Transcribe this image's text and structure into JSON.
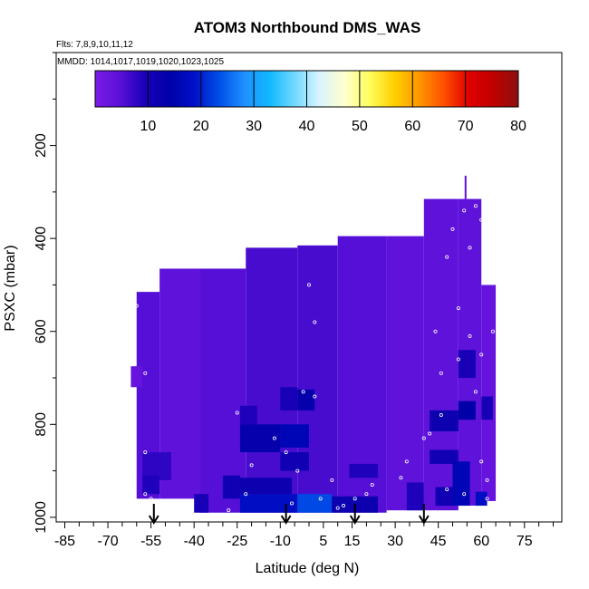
{
  "chart_data": {
    "type": "heatmap",
    "title": "ATOM3 Northbound DMS_WAS",
    "flights_label": "Flts: 7,8,9,10,11,12",
    "dates_label": "MMDD: 1014,1017,1019,1020,1023,1025",
    "xlabel": "Latitude (deg N)",
    "ylabel": "PSXC (mbar)",
    "xlim": [
      -88,
      88
    ],
    "ylim": [
      1010,
      0
    ],
    "x_ticks": [
      -85,
      -70,
      -55,
      -40,
      -25,
      -10,
      5,
      15,
      30,
      45,
      60,
      75
    ],
    "x_tick_labels": [
      "-85",
      "-70",
      "-55",
      "-40",
      "-25",
      "-10",
      "5",
      "15",
      "30",
      "45",
      "60",
      "75"
    ],
    "y_ticks": [
      200,
      400,
      600,
      800,
      1000
    ],
    "y_tick_labels": [
      "200",
      "400",
      "600",
      "800",
      "1000"
    ],
    "colorbar": {
      "min": 0,
      "max": 80,
      "ticks": [
        10,
        20,
        30,
        40,
        50,
        60,
        70,
        80
      ],
      "tick_labels": [
        "10",
        "20",
        "30",
        "40",
        "50",
        "60",
        "70",
        "80"
      ],
      "stops": [
        "#7a1be6",
        "#5a10d8",
        "#1a00b8",
        "#0000a8",
        "#0010c8",
        "#0050e8",
        "#2090ff",
        "#10b8ff",
        "#70d8ff",
        "#d8f4ff",
        "#ffffd0",
        "#ffff60",
        "#ffd000",
        "#ff9800",
        "#ff5000",
        "#e00000",
        "#c00000",
        "#8c1010"
      ]
    },
    "cells": [
      {
        "lat": [
          -60,
          -52
        ],
        "p": [
          515,
          960
        ],
        "value": 5
      },
      {
        "lat": [
          -52,
          -38
        ],
        "p": [
          465,
          960
        ],
        "value": 4
      },
      {
        "lat": [
          -38,
          -22
        ],
        "p": [
          465,
          990
        ],
        "value": 5
      },
      {
        "lat": [
          -22,
          -4
        ],
        "p": [
          420,
          990
        ],
        "value": 6
      },
      {
        "lat": [
          -4,
          10
        ],
        "p": [
          415,
          990
        ],
        "value": 6
      },
      {
        "lat": [
          10,
          27
        ],
        "p": [
          395,
          990
        ],
        "value": 5
      },
      {
        "lat": [
          27,
          40
        ],
        "p": [
          395,
          985
        ],
        "value": 4
      },
      {
        "lat": [
          40,
          52
        ],
        "p": [
          315,
          985
        ],
        "value": 4
      },
      {
        "lat": [
          52,
          60
        ],
        "p": [
          315,
          975
        ],
        "value": 4
      },
      {
        "lat": [
          60,
          65
        ],
        "p": [
          500,
          965
        ],
        "value": 3
      },
      {
        "lat": [
          -62,
          -58
        ],
        "p": [
          675,
          720
        ],
        "value": 3
      },
      {
        "lat": [
          -58,
          -48
        ],
        "p": [
          860,
          920
        ],
        "value": 8
      },
      {
        "lat": [
          -58,
          -52
        ],
        "p": [
          910,
          950
        ],
        "value": 9
      },
      {
        "lat": [
          -40,
          -35
        ],
        "p": [
          950,
          990
        ],
        "value": 10
      },
      {
        "lat": [
          -30,
          -24
        ],
        "p": [
          910,
          960
        ],
        "value": 11
      },
      {
        "lat": [
          -24,
          -18
        ],
        "p": [
          760,
          800
        ],
        "value": 9
      },
      {
        "lat": [
          -24,
          -10
        ],
        "p": [
          800,
          860
        ],
        "value": 13
      },
      {
        "lat": [
          -10,
          0
        ],
        "p": [
          800,
          850
        ],
        "value": 16
      },
      {
        "lat": [
          -10,
          0
        ],
        "p": [
          860,
          900
        ],
        "value": 11
      },
      {
        "lat": [
          -10,
          -4
        ],
        "p": [
          720,
          770
        ],
        "value": 10
      },
      {
        "lat": [
          -4,
          2
        ],
        "p": [
          725,
          770
        ],
        "value": 13
      },
      {
        "lat": [
          -24,
          -6
        ],
        "p": [
          915,
          950
        ],
        "value": 12
      },
      {
        "lat": [
          -24,
          -4
        ],
        "p": [
          950,
          990
        ],
        "value": 18
      },
      {
        "lat": [
          -4,
          8
        ],
        "p": [
          950,
          990
        ],
        "value": 23
      },
      {
        "lat": [
          8,
          24
        ],
        "p": [
          955,
          990
        ],
        "value": 12
      },
      {
        "lat": [
          14,
          24
        ],
        "p": [
          885,
          915
        ],
        "value": 9
      },
      {
        "lat": [
          34,
          40
        ],
        "p": [
          925,
          985
        ],
        "value": 9
      },
      {
        "lat": [
          42,
          52
        ],
        "p": [
          770,
          815
        ],
        "value": 12
      },
      {
        "lat": [
          42,
          52
        ],
        "p": [
          855,
          885
        ],
        "value": 11
      },
      {
        "lat": [
          52,
          58
        ],
        "p": [
          640,
          700
        ],
        "value": 10
      },
      {
        "lat": [
          52,
          58
        ],
        "p": [
          750,
          790
        ],
        "value": 14
      },
      {
        "lat": [
          50,
          56
        ],
        "p": [
          880,
          975
        ],
        "value": 16
      },
      {
        "lat": [
          58,
          62
        ],
        "p": [
          945,
          975
        ],
        "value": 18
      },
      {
        "lat": [
          44,
          50
        ],
        "p": [
          935,
          975
        ],
        "value": 11
      },
      {
        "lat": [
          60,
          64
        ],
        "p": [
          740,
          790
        ],
        "value": 10
      }
    ],
    "flight_track_points": [
      {
        "lat": -54,
        "p": 502
      },
      {
        "lat": -60,
        "p": 545
      },
      {
        "lat": -57,
        "p": 690
      },
      {
        "lat": -57,
        "p": 950
      },
      {
        "lat": -57,
        "p": 860
      },
      {
        "lat": -55,
        "p": 960
      },
      {
        "lat": -40,
        "p": 1000
      },
      {
        "lat": -28,
        "p": 985
      },
      {
        "lat": -25,
        "p": 775
      },
      {
        "lat": -22,
        "p": 950
      },
      {
        "lat": -20,
        "p": 888
      },
      {
        "lat": -12,
        "p": 830
      },
      {
        "lat": -8,
        "p": 860
      },
      {
        "lat": -6,
        "p": 970
      },
      {
        "lat": -4,
        "p": 900
      },
      {
        "lat": -2,
        "p": 730
      },
      {
        "lat": 2,
        "p": 740
      },
      {
        "lat": 0,
        "p": 500
      },
      {
        "lat": 2,
        "p": 580
      },
      {
        "lat": 4,
        "p": 960
      },
      {
        "lat": 8,
        "p": 920
      },
      {
        "lat": 10,
        "p": 980
      },
      {
        "lat": 12,
        "p": 975
      },
      {
        "lat": 16,
        "p": 960
      },
      {
        "lat": 20,
        "p": 950
      },
      {
        "lat": 22,
        "p": 930
      },
      {
        "lat": 32,
        "p": 915
      },
      {
        "lat": 34,
        "p": 880
      },
      {
        "lat": 40,
        "p": 830
      },
      {
        "lat": 44,
        "p": 600
      },
      {
        "lat": 46,
        "p": 690
      },
      {
        "lat": 48,
        "p": 440
      },
      {
        "lat": 50,
        "p": 380
      },
      {
        "lat": 52,
        "p": 550
      },
      {
        "lat": 54,
        "p": 340
      },
      {
        "lat": 56,
        "p": 420
      },
      {
        "lat": 58,
        "p": 330
      },
      {
        "lat": 60,
        "p": 360
      },
      {
        "lat": 62,
        "p": 470
      },
      {
        "lat": 64,
        "p": 600
      },
      {
        "lat": 58,
        "p": 730
      },
      {
        "lat": 60,
        "p": 880
      },
      {
        "lat": 62,
        "p": 920
      },
      {
        "lat": 54,
        "p": 950
      },
      {
        "lat": 56,
        "p": 610
      },
      {
        "lat": 52,
        "p": 660
      },
      {
        "lat": 46,
        "p": 780
      },
      {
        "lat": 42,
        "p": 820
      },
      {
        "lat": 60,
        "p": 650
      },
      {
        "lat": 62,
        "p": 960
      },
      {
        "lat": 48,
        "p": 940
      },
      {
        "lat": 36,
        "p": 990
      }
    ],
    "arrows_lat": [
      -54,
      -8,
      16,
      40
    ],
    "top_spike": {
      "lat": 54.5,
      "p": [
        265,
        315
      ]
    }
  }
}
